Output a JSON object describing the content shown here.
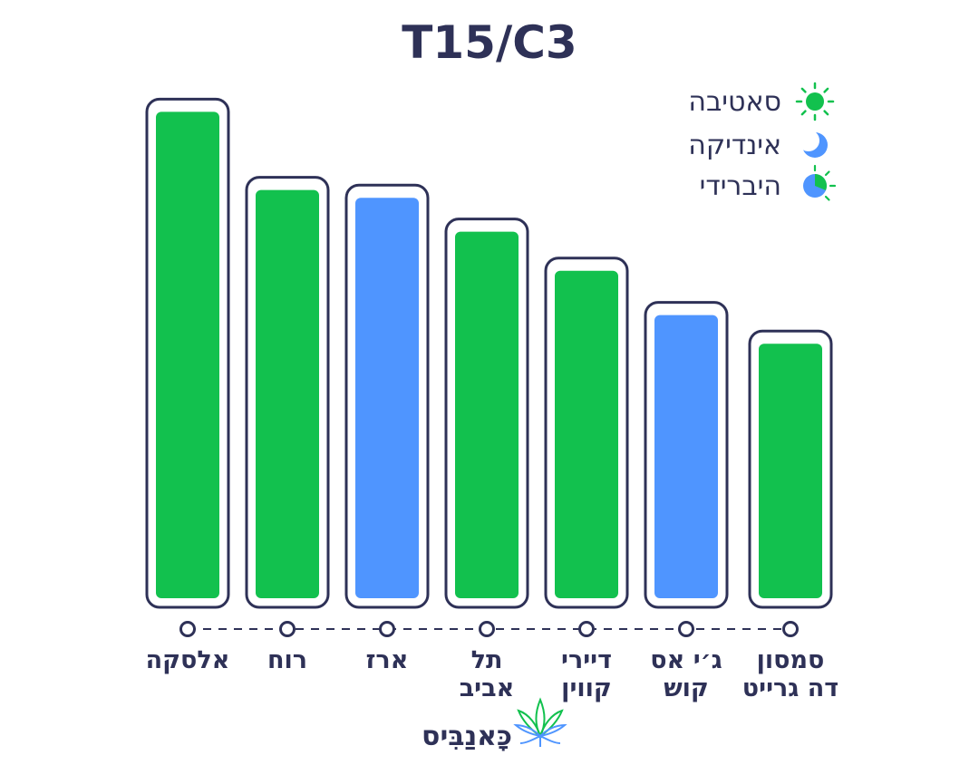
{
  "chart_data": {
    "type": "bar",
    "title": "T15/C3",
    "xlabel": "",
    "ylabel": "",
    "grid": false,
    "legend_position": "top-right",
    "categories": [
      [
        "אלסקה"
      ],
      [
        "רוח"
      ],
      [
        "ארז"
      ],
      [
        "תל",
        "אביב"
      ],
      [
        "דיירי",
        "קווין"
      ],
      [
        "ג׳י אס",
        "קוש"
      ],
      [
        "סמסון",
        "דה גרייט"
      ]
    ],
    "values": [
      19.5,
      16.5,
      16.2,
      14.9,
      13.4,
      11.7,
      10.6
    ],
    "strain_types": [
      "sativa",
      "sativa",
      "indica",
      "sativa",
      "sativa",
      "indica",
      "sativa"
    ],
    "ylim": [
      0,
      20
    ],
    "legend": [
      {
        "key": "sativa",
        "label": "סאטיבה",
        "icon": "sun-icon"
      },
      {
        "key": "indica",
        "label": "אינדיקה",
        "icon": "moon-icon"
      },
      {
        "key": "hybrid",
        "label": "היברידי",
        "icon": "hybrid-icon"
      }
    ],
    "colors": {
      "sativa": "#12c14e",
      "indica": "#4f95ff",
      "outline": "#2e3157"
    }
  },
  "logo": {
    "text": "כָּאנַבִּיס",
    "icon": "cannabis-leaf-icon"
  }
}
